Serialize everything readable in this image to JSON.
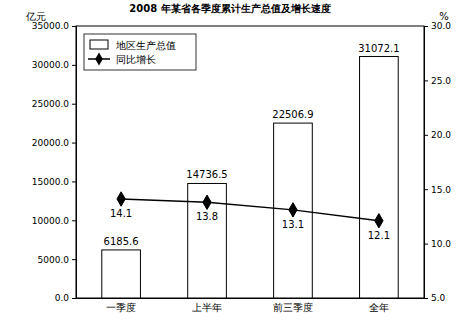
{
  "chart_data": {
    "type": "bar",
    "title": "2008 年某省各季度累计生产总值及增长速度",
    "y_label": "亿元",
    "y2_label": "%",
    "categories": [
      "一季度",
      "上半年",
      "前三季度",
      "全年"
    ],
    "series": [
      {
        "name": "地区生产总值",
        "type": "bar",
        "color": "#ffffff",
        "values": [
          6185.6,
          14736.5,
          22506.9,
          31072.1
        ]
      },
      {
        "name": "同比增长",
        "type": "line",
        "axis": "y2",
        "color": "#000000",
        "marker": "diamond",
        "values": [
          14.1,
          13.8,
          13.1,
          12.1
        ]
      }
    ],
    "ylim": [
      0,
      35000
    ],
    "yticks": [
      {
        "value": 0,
        "label": "0.0"
      },
      {
        "value": 5000,
        "label": "5000.0"
      },
      {
        "value": 10000,
        "label": "10000.0"
      },
      {
        "value": 15000,
        "label": "15000.0"
      },
      {
        "value": 20000,
        "label": "20000.0"
      },
      {
        "value": 25000,
        "label": "25000.0"
      },
      {
        "value": 30000,
        "label": "30000.0"
      },
      {
        "value": 35000,
        "label": "35000.0"
      }
    ],
    "y2lim": [
      5,
      30
    ],
    "y2ticks": [
      {
        "value": 5,
        "label": "5.0"
      },
      {
        "value": 10,
        "label": "10.0"
      },
      {
        "value": 15,
        "label": "15.0"
      },
      {
        "value": 20,
        "label": "20.0"
      },
      {
        "value": 25,
        "label": "25.0"
      },
      {
        "value": 30,
        "label": "30.0"
      }
    ],
    "legend": "upper left",
    "data_labels": true,
    "grid": false
  }
}
